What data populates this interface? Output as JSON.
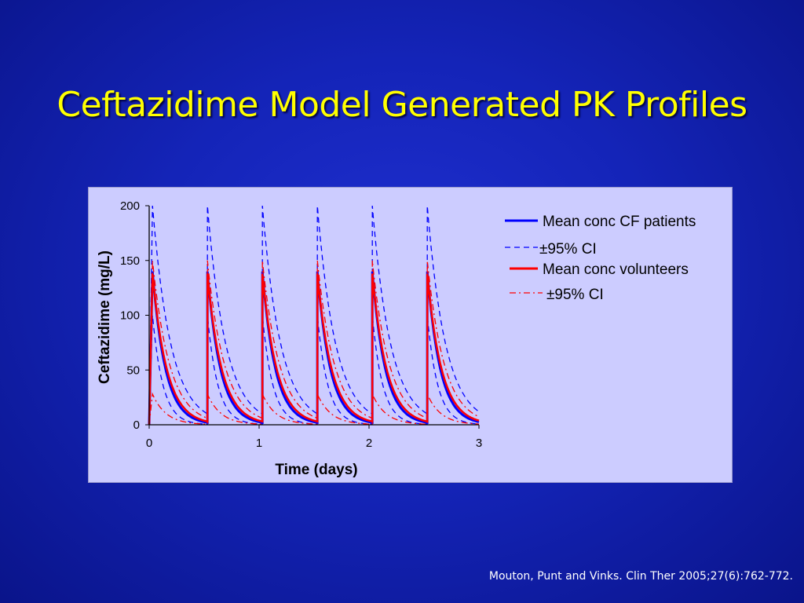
{
  "slide": {
    "title": "Ceftazidime Model Generated PK Profiles",
    "citation": "Mouton, Punt and Vinks. Clin Ther 2005;27(6):762-772."
  },
  "chart_data": {
    "type": "line",
    "title": "",
    "xlabel": "Time (days)",
    "ylabel": "Ceftazidime (mg/L)",
    "xlim": [
      0,
      3
    ],
    "ylim": [
      0,
      200
    ],
    "x_ticks": [
      "0",
      "1",
      "2",
      "3"
    ],
    "y_ticks": [
      "0",
      "50",
      "100",
      "150",
      "200"
    ],
    "grid": false,
    "legend_position": "right",
    "dose_times_days": [
      0.03,
      0.53,
      1.03,
      1.53,
      2.03,
      2.53
    ],
    "dosing_interval_days": 0.5,
    "legend": [
      {
        "label": "Mean conc CF patients",
        "style": "solid",
        "color": "#0000ff"
      },
      {
        "label": "±95% CI",
        "style": "dashed",
        "color": "#0000ff"
      },
      {
        "label": "Mean conc volunteers",
        "style": "solid",
        "color": "#ff0000"
      },
      {
        "label": "±95% CI",
        "style": "dashdot",
        "color": "#ff0000"
      }
    ],
    "series": [
      {
        "name": "Mean conc CF patients",
        "color": "#0000ff",
        "style": "solid",
        "width": 3,
        "peak": 140,
        "trough": 2
      },
      {
        "name": "±95% CI",
        "color": "#0000ff",
        "style": "dashed",
        "width": 1.3,
        "peak": 200,
        "trough": 10
      },
      {
        "name": "±95% CI",
        "color": "#0000ff",
        "style": "dashed",
        "width": 1.3,
        "peak": 100,
        "trough": 0
      },
      {
        "name": "Mean conc volunteers",
        "color": "#ff0000",
        "style": "solid",
        "width": 2.5,
        "peak": 138,
        "trough": 3
      },
      {
        "name": "±95% CI",
        "color": "#ff0000",
        "style": "dashdot",
        "width": 1.3,
        "peak": 150,
        "trough": 6
      },
      {
        "name": "±95% CI",
        "color": "#ff0000",
        "style": "dashdot",
        "width": 1.3,
        "peak": 28,
        "trough": 0
      }
    ]
  }
}
